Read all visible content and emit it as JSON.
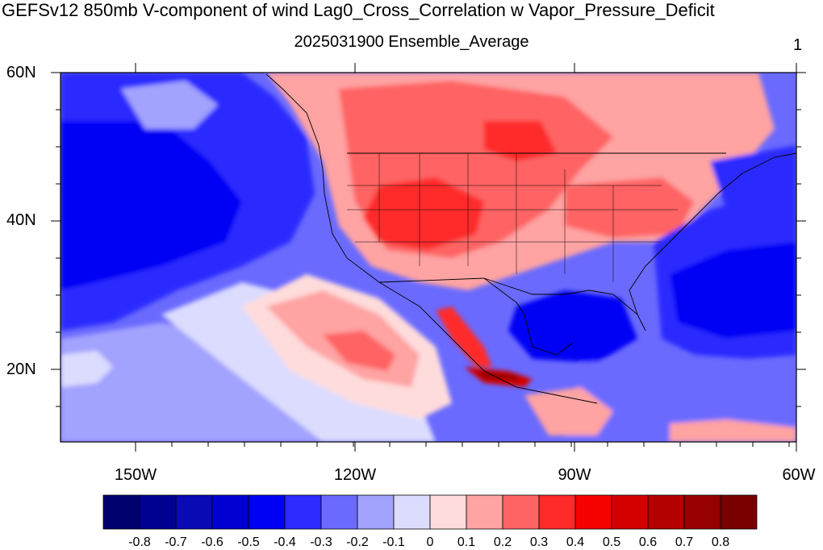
{
  "title": "GEFSv12 850mb V-component of wind Lag0_Cross_Correlation w Vapor_Pressure_Deficit",
  "subtitle": "2025031900 Ensemble_Average",
  "corner_label": "1",
  "lat_labels": [
    "60N",
    "40N",
    "20N"
  ],
  "lon_labels": [
    "150W",
    "120W",
    "90W",
    "60W"
  ],
  "colorbar": {
    "colors": [
      "#00006e",
      "#000090",
      "#0a0ab4",
      "#0000d2",
      "#0000f5",
      "#2b2bff",
      "#6a6aff",
      "#a2a2ff",
      "#dcdcff",
      "#ffdcdc",
      "#ffa3a3",
      "#ff6464",
      "#ff2a2a",
      "#f70000",
      "#d40000",
      "#b40000",
      "#960000",
      "#780000"
    ],
    "labels": [
      "-0.8",
      "-0.7",
      "-0.6",
      "-0.5",
      "-0.4",
      "-0.3",
      "-0.2",
      "-0.1",
      "0",
      "0.1",
      "0.2",
      "0.3",
      "0.4",
      "0.5",
      "0.6",
      "0.7",
      "0.8"
    ]
  }
}
